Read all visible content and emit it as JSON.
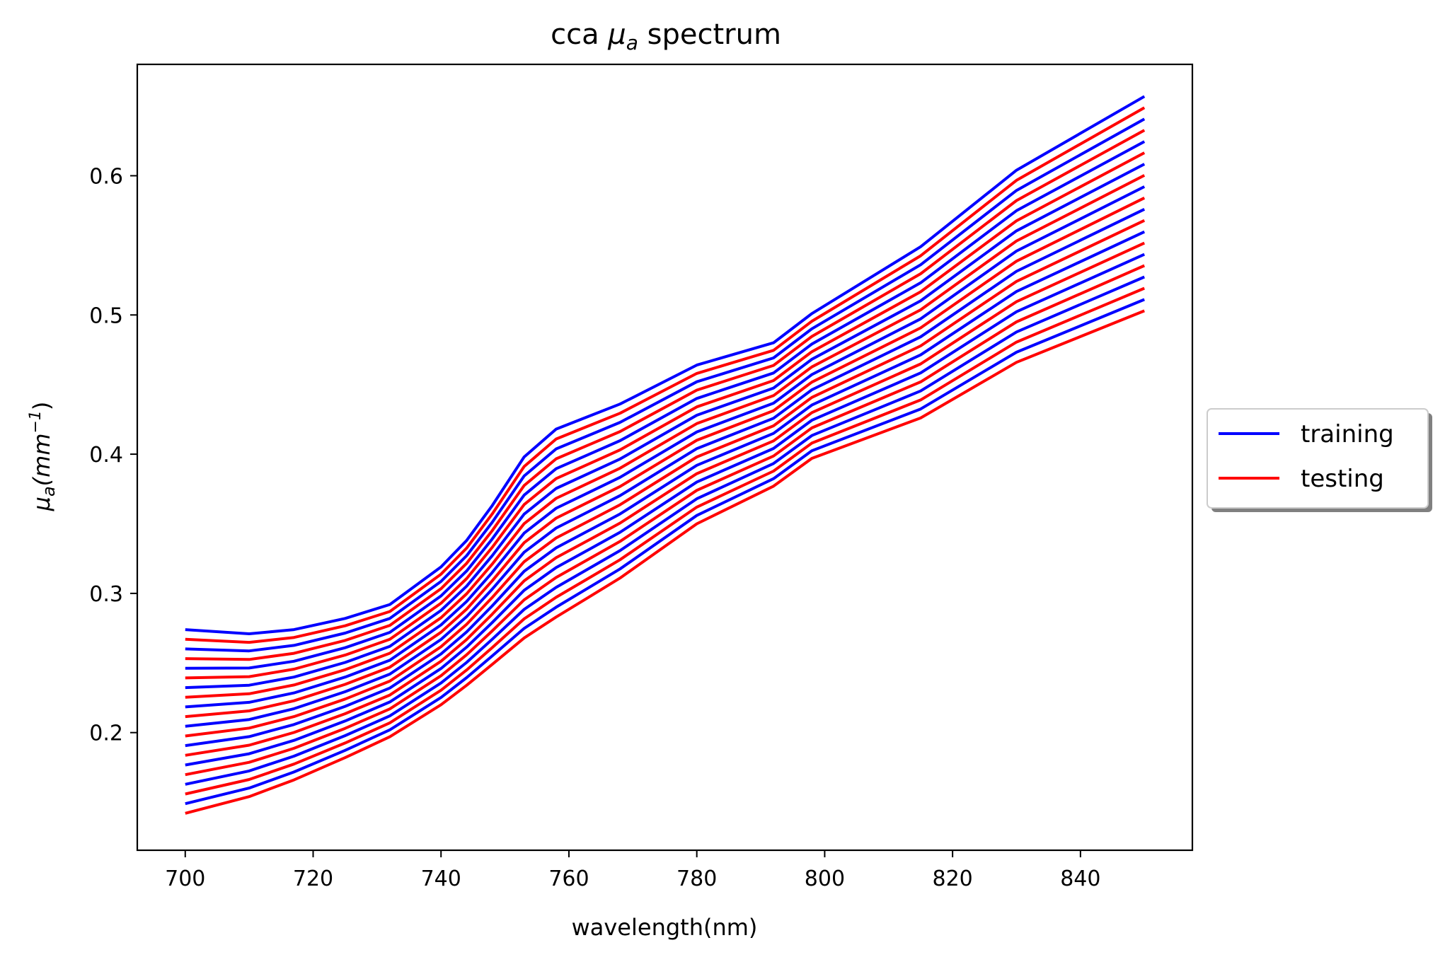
{
  "chart_data": {
    "type": "line",
    "title": "cca μa spectrum",
    "title_parts": {
      "prefix": "cca ",
      "symbol": "μ",
      "subscript": "a",
      "suffix": " spectrum"
    },
    "xlabel": "wavelength(nm)",
    "ylabel_parts": {
      "symbol": "μ",
      "subscript": "a",
      "unit_open": "(mm",
      "unit_power": "−1",
      "unit_close": ")"
    },
    "xlim": [
      692.5,
      857.5
    ],
    "ylim": [
      0.1155,
      0.68
    ],
    "xticks": [
      700,
      720,
      740,
      760,
      780,
      800,
      820,
      840
    ],
    "yticks": [
      0.2,
      0.3,
      0.4,
      0.5,
      0.6
    ],
    "ytick_labels": [
      "0.2",
      "0.3",
      "0.4",
      "0.5",
      "0.6"
    ],
    "legend": {
      "position": "center-right outside",
      "entries": [
        {
          "label": "training",
          "color": "#0000ff"
        },
        {
          "label": "testing",
          "color": "#ff0000"
        }
      ]
    },
    "x": [
      700,
      710,
      717,
      725,
      732,
      740,
      744,
      748,
      753,
      758,
      763,
      768,
      780,
      792,
      798,
      815,
      830,
      850
    ],
    "top_curve": [
      0.274,
      0.271,
      0.274,
      0.282,
      0.292,
      0.319,
      0.338,
      0.363,
      0.398,
      0.418,
      0.427,
      0.436,
      0.464,
      0.48,
      0.501,
      0.549,
      0.604,
      0.657
    ],
    "bottom_curve": [
      0.142,
      0.154,
      0.166,
      0.182,
      0.197,
      0.22,
      0.234,
      0.249,
      0.268,
      0.283,
      0.297,
      0.311,
      0.35,
      0.377,
      0.397,
      0.426,
      0.466,
      0.503
    ],
    "n_series": 20,
    "series_pattern": "alternating training (blue) / testing (red), evenly spaced between top and bottom curves",
    "colors": {
      "training": "#0000ff",
      "testing": "#ff0000"
    }
  }
}
